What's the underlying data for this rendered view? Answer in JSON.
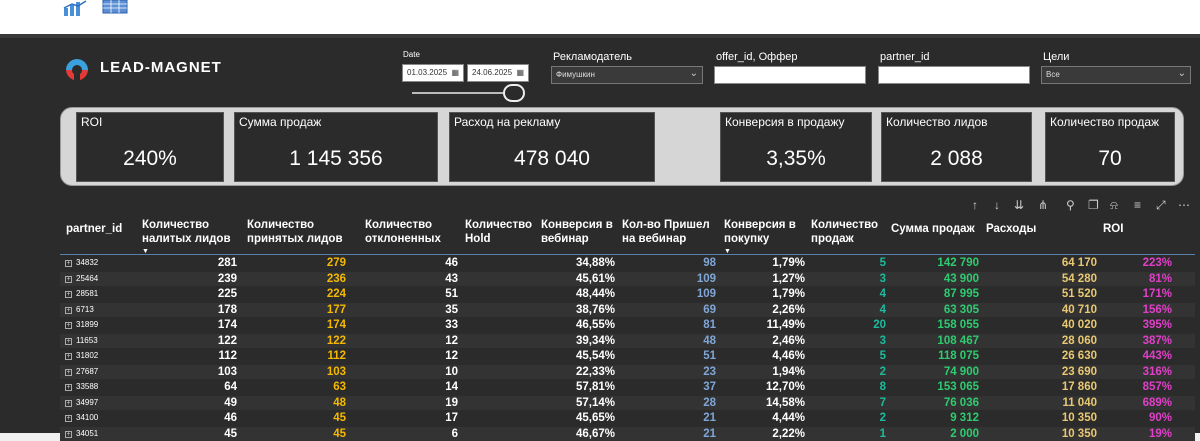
{
  "brand": {
    "name": "LEAD-MAGNET"
  },
  "filters": {
    "date_label": "Date",
    "date_from": "01.03.2025",
    "date_to": "24.06.2025",
    "advertiser_label": "Рекламодатель",
    "advertiser_value": "Фимушкин",
    "offer_label": "offer_id, Оффер",
    "offer_value": "",
    "partner_label": "partner_id",
    "partner_value": "",
    "goals_label": "Цели",
    "goals_value": "Все"
  },
  "kpis": [
    {
      "title": "ROI",
      "value": "240%"
    },
    {
      "title": "Сумма продаж",
      "value": "1 145 356"
    },
    {
      "title": "Расход на рекламу",
      "value": "478 040"
    },
    {
      "title": "Конверсия в продажу",
      "value": "3,35%"
    },
    {
      "title": "Количество лидов",
      "value": "2 088"
    },
    {
      "title": "Количество продаж",
      "value": "70"
    }
  ],
  "colors": {
    "accepted": "#f5b800",
    "webinar": "#7fa6d6",
    "sales_count": "#1abc9c",
    "sales_sum": "#2ecc71",
    "expenses": "#e8c872",
    "roi": "#e040c8"
  },
  "table": {
    "headers": {
      "partner": "partner_id",
      "poured_1": "Количество",
      "poured_2": "налитых лидов",
      "accepted_1": "Количество",
      "accepted_2": "принятых лидов",
      "rejected_1": "Количество",
      "rejected_2": "отклоненных",
      "hold_1": "Количество",
      "hold_2": "Hold",
      "conv_web_1": "Конверсия в",
      "conv_web_2": "вебинар",
      "came_1": "Кол-во Пришел",
      "came_2": "на вебинар",
      "conv_buy_1": "Конверсия в",
      "conv_buy_2": "покупку",
      "sales_1": "Количество",
      "sales_2": "продаж",
      "sum": "Сумма продаж",
      "exp": "Расходы",
      "roi": "ROI"
    },
    "rows": [
      {
        "partner": "34832",
        "poured": "281",
        "accepted": "279",
        "rejected": "46",
        "conv_web": "34,88%",
        "came": "98",
        "conv_buy": "1,79%",
        "sales": "5",
        "sum": "142 790",
        "exp": "64 170",
        "roi": "223%"
      },
      {
        "partner": "25464",
        "poured": "239",
        "accepted": "236",
        "rejected": "43",
        "conv_web": "45,61%",
        "came": "109",
        "conv_buy": "1,27%",
        "sales": "3",
        "sum": "43 900",
        "exp": "54 280",
        "roi": "81%"
      },
      {
        "partner": "28581",
        "poured": "225",
        "accepted": "224",
        "rejected": "51",
        "conv_web": "48,44%",
        "came": "109",
        "conv_buy": "1,79%",
        "sales": "4",
        "sum": "87 995",
        "exp": "51 520",
        "roi": "171%"
      },
      {
        "partner": "6713",
        "poured": "178",
        "accepted": "177",
        "rejected": "35",
        "conv_web": "38,76%",
        "came": "69",
        "conv_buy": "2,26%",
        "sales": "4",
        "sum": "63 305",
        "exp": "40 710",
        "roi": "156%"
      },
      {
        "partner": "31899",
        "poured": "174",
        "accepted": "174",
        "rejected": "33",
        "conv_web": "46,55%",
        "came": "81",
        "conv_buy": "11,49%",
        "sales": "20",
        "sum": "158 055",
        "exp": "40 020",
        "roi": "395%"
      },
      {
        "partner": "11653",
        "poured": "122",
        "accepted": "122",
        "rejected": "12",
        "conv_web": "39,34%",
        "came": "48",
        "conv_buy": "2,46%",
        "sales": "3",
        "sum": "108 467",
        "exp": "28 060",
        "roi": "387%"
      },
      {
        "partner": "31802",
        "poured": "112",
        "accepted": "112",
        "rejected": "12",
        "conv_web": "45,54%",
        "came": "51",
        "conv_buy": "4,46%",
        "sales": "5",
        "sum": "118 075",
        "exp": "26 630",
        "roi": "443%"
      },
      {
        "partner": "27687",
        "poured": "103",
        "accepted": "103",
        "rejected": "10",
        "conv_web": "22,33%",
        "came": "23",
        "conv_buy": "1,94%",
        "sales": "2",
        "sum": "74 900",
        "exp": "23 690",
        "roi": "316%"
      },
      {
        "partner": "33588",
        "poured": "64",
        "accepted": "63",
        "rejected": "14",
        "conv_web": "57,81%",
        "came": "37",
        "conv_buy": "12,70%",
        "sales": "8",
        "sum": "153 065",
        "exp": "17 860",
        "roi": "857%"
      },
      {
        "partner": "34997",
        "poured": "49",
        "accepted": "48",
        "rejected": "19",
        "conv_web": "57,14%",
        "came": "28",
        "conv_buy": "14,58%",
        "sales": "7",
        "sum": "76 036",
        "exp": "11 040",
        "roi": "689%"
      },
      {
        "partner": "34100",
        "poured": "46",
        "accepted": "45",
        "rejected": "17",
        "conv_web": "45,65%",
        "came": "21",
        "conv_buy": "4,44%",
        "sales": "2",
        "sum": "9 312",
        "exp": "10 350",
        "roi": "90%"
      },
      {
        "partner": "34051",
        "poured": "45",
        "accepted": "45",
        "rejected": "6",
        "conv_web": "46,67%",
        "came": "21",
        "conv_buy": "2,22%",
        "sales": "1",
        "sum": "2 000",
        "exp": "10 350",
        "roi": "19%"
      }
    ]
  }
}
